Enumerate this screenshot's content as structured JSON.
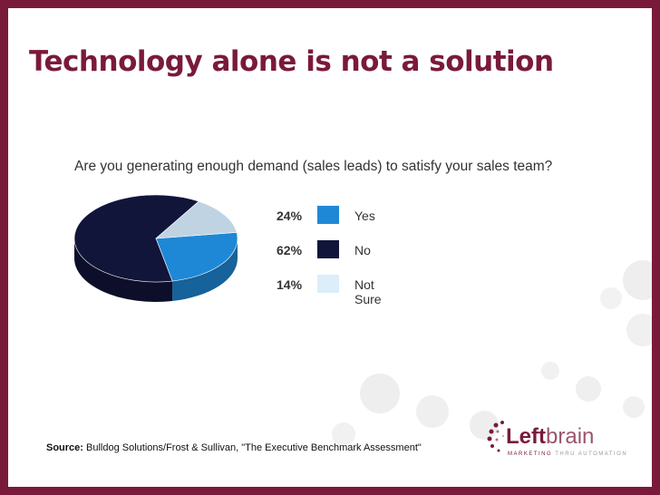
{
  "slide": {
    "title": "Technology alone is not a solution"
  },
  "chart_data": {
    "type": "pie",
    "title": "Are you generating enough demand (sales leads) to satisfy your sales team?",
    "categories": [
      "Yes",
      "No",
      "Not Sure"
    ],
    "values": [
      24,
      62,
      14
    ],
    "value_labels": [
      "24%",
      "62%",
      "14%"
    ],
    "colors": [
      "#1e88d6",
      "#12153a",
      "#bfd3e3"
    ],
    "swatch_colors": [
      "#1e88d6",
      "#12153a",
      "#dbeefa"
    ],
    "legend_placement": "right"
  },
  "source": {
    "label": "Source:",
    "text": "Bulldog Solutions/Frost & Sullivan, \"The Executive Benchmark Assessment\""
  },
  "logo": {
    "left": "Left",
    "brain": "brain",
    "tagline_a": "MARKETING",
    "tagline_b": "THRU AUTOMATION"
  },
  "colors": {
    "frame": "#7a1a3a",
    "title": "#7a1a3a"
  }
}
